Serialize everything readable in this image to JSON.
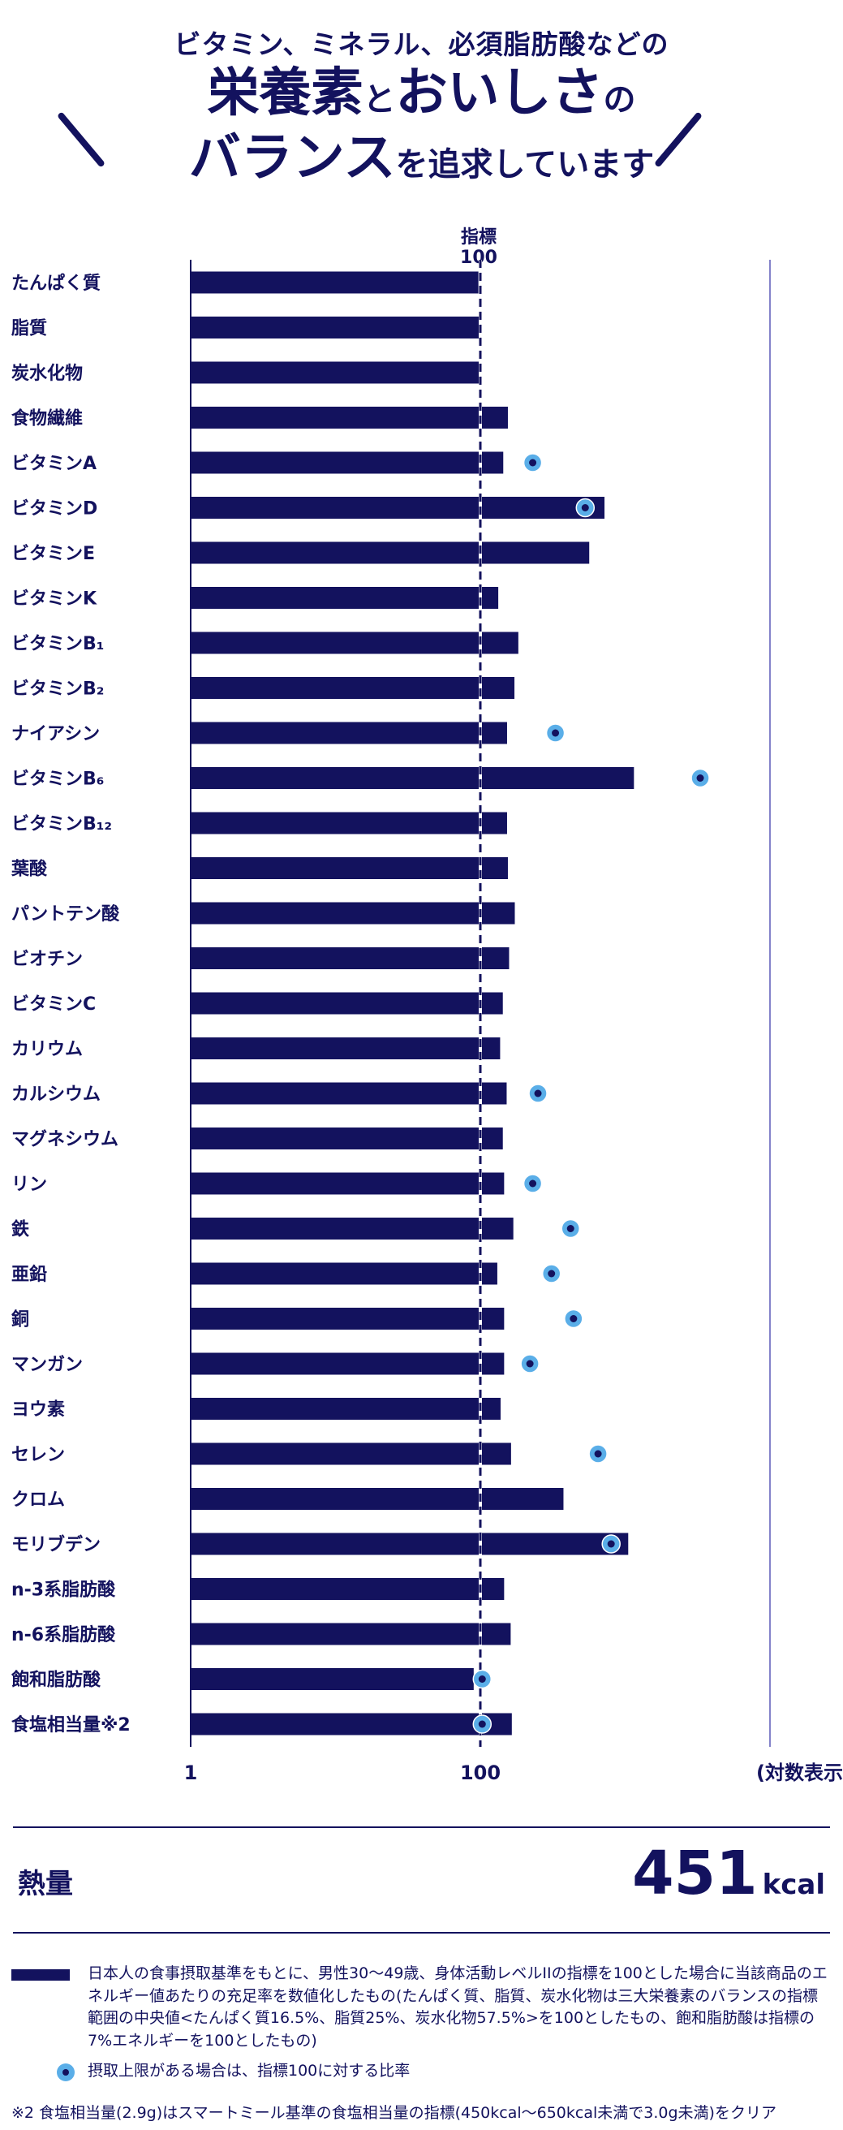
{
  "header": {
    "line1": "ビタミン、ミネラル、必須脂肪酸などの",
    "line2a": "栄養素",
    "line2b": "と",
    "line2c": "おいしさ",
    "line2d": "の",
    "line3a": "バランス",
    "line3b": "を追求しています"
  },
  "chart_data": {
    "type": "bar",
    "title": "",
    "xscale": "log",
    "xlim": [
      1,
      10000
    ],
    "xticks": [
      "1",
      "100"
    ],
    "xaxis_note": "(対数表示)",
    "reference_line": {
      "label_top": "指標",
      "label_bottom": "100",
      "value": 100
    },
    "categories": [
      "たんぱく質",
      "脂質",
      "炭水化物",
      "食物繊維",
      "ビタミンA",
      "ビタミンD",
      "ビタミンE",
      "ビタミンK",
      "ビタミンB₁",
      "ビタミンB₂",
      "ナイアシン",
      "ビタミンB₆",
      "ビタミンB₁₂",
      "葉酸",
      "パントテン酸",
      "ビオチン",
      "ビタミンC",
      "カリウム",
      "カルシウム",
      "マグネシウム",
      "リン",
      "鉄",
      "亜鉛",
      "銅",
      "マンガン",
      "ヨウ素",
      "セレン",
      "クロム",
      "モリブデン",
      "n-3系脂肪酸",
      "n-6系脂肪酸",
      "飽和脂肪酸",
      "食塩相当量※2"
    ],
    "series": [
      {
        "values": [
          97,
          102,
          101,
          155,
          144,
          720,
          565,
          133,
          183,
          172,
          153,
          1150,
          153,
          155,
          173,
          158,
          143,
          137,
          152,
          143,
          146,
          169,
          131,
          146,
          146,
          138,
          163,
          375,
          1050,
          146,
          162,
          90,
          165
        ]
      },
      {
        "values": [
          null,
          null,
          null,
          null,
          230,
          530,
          null,
          null,
          null,
          null,
          330,
          3300,
          null,
          null,
          null,
          null,
          null,
          null,
          250,
          null,
          230,
          420,
          310,
          440,
          220,
          null,
          650,
          null,
          800,
          null,
          null,
          103,
          103
        ]
      }
    ]
  },
  "energy": {
    "label": "熱量",
    "value": "451",
    "unit": "kcal"
  },
  "legend": {
    "bar_text": "日本人の食事摂取基準をもとに、男性30〜49歳、身体活動レベルIIの指標を100とした場合に当該商品のエネルギー値あたりの充足率を数値化したもの(たんぱく質、脂質、炭水化物は三大栄養素のバランスの指標範囲の中央値<たんぱく質16.5%、脂質25%、炭水化物57.5%>を100としたもの、飽和脂肪酸は指標の7%エネルギーを100としたもの)",
    "dot_text": "摂取上限がある場合は、指標100に対する比率"
  },
  "footnote": "※2 食塩相当量(2.9g)はスマートミール基準の食塩相当量の指標(450kcal〜650kcal未満で3.0g未満)をクリア",
  "colors": {
    "navy": "#13125e",
    "light_blue": "#5aaee8",
    "grid": "#5b5ab8"
  }
}
